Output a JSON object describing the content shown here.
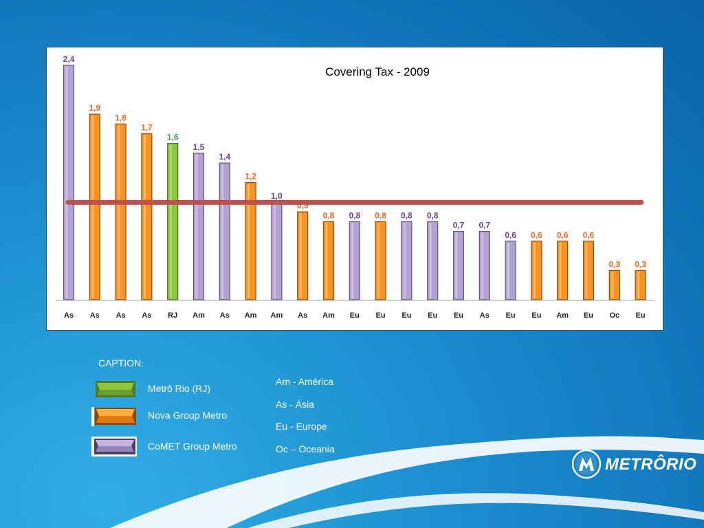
{
  "chart_data": {
    "type": "bar",
    "title": "Covering Tax - 2009",
    "categories": [
      "As",
      "As",
      "As",
      "As",
      "RJ",
      "Am",
      "As",
      "Am",
      "Am",
      "As",
      "Am",
      "Eu",
      "Eu",
      "Eu",
      "Eu",
      "Eu",
      "As",
      "Eu",
      "Eu",
      "Am",
      "Eu",
      "Oc",
      "Eu"
    ],
    "values": [
      2.4,
      1.9,
      1.8,
      1.7,
      1.6,
      1.5,
      1.4,
      1.2,
      1.0,
      0.9,
      0.8,
      0.8,
      0.8,
      0.8,
      0.8,
      0.7,
      0.7,
      0.6,
      0.6,
      0.6,
      0.6,
      0.3,
      0.3
    ],
    "value_labels": [
      "2,4",
      "1,9",
      "1,8",
      "1,7",
      "1,6",
      "1,5",
      "1,4",
      "1,2",
      "1,0",
      "0,9",
      "0,8",
      "0,8",
      "0,8",
      "0,8",
      "0,8",
      "0,7",
      "0,7",
      "0,6",
      "0,6",
      "0,6",
      "0,6",
      "0,3",
      "0,3"
    ],
    "groups": [
      "comet",
      "nova",
      "nova",
      "nova",
      "rio",
      "comet",
      "comet",
      "nova",
      "comet",
      "nova",
      "nova",
      "comet",
      "nova",
      "comet",
      "comet",
      "comet",
      "comet",
      "comet",
      "nova",
      "nova",
      "nova",
      "nova",
      "nova"
    ],
    "reference_line": 1.0,
    "ylim": [
      0,
      2.4
    ],
    "grid": false,
    "xlabel": "",
    "ylabel": ""
  },
  "colors": {
    "rio": "#8cc63f",
    "nova": "#f7931e",
    "comet": "#b3a2d2",
    "nova_label": "#f26522",
    "comet_label": "#6a3fa0",
    "rio_label": "#2fa84f",
    "reference_line": "#c0504d"
  },
  "legend": {
    "title": "CAPTION",
    "colon": ":",
    "items": [
      {
        "key": "rio",
        "label": "Metrô Rio (RJ)"
      },
      {
        "key": "nova",
        "label": "Nova Group Metro"
      },
      {
        "key": "comet",
        "label": "CoMET Group Metro"
      }
    ]
  },
  "regions": [
    "Am - América",
    "As - Ásia",
    "Eu - Europe",
    "Oc – Oceania"
  ],
  "logo": {
    "text": "METRÔRIO",
    "icon": "metro-rio-m-icon"
  }
}
